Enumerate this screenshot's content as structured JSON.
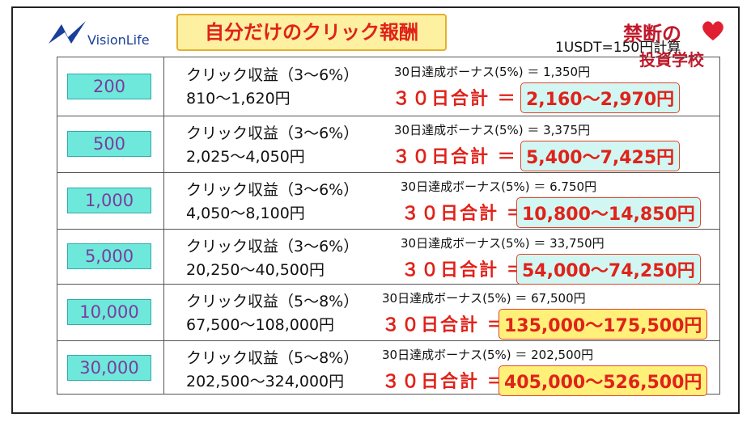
{
  "header": {
    "logo": "VisionLife",
    "title": "自分だけのクリック報酬",
    "rate": "1USDT=150円計算",
    "watermark_top": "禁断の",
    "watermark_bottom": "投資学校"
  },
  "table": {
    "rows": [
      {
        "amount": "200",
        "click": "クリック収益（3〜6%）",
        "range": "810〜1,620円",
        "bonus": "30日達成ボーナス(5%) ＝ 1,350円",
        "total_label": "３０日合計 ＝",
        "total": "2,160〜2,970円"
      },
      {
        "amount": "500",
        "click": "クリック収益（3〜6%）",
        "range": "2,025〜4,050円",
        "bonus": "30日達成ボーナス(5%) ＝ 3,375円",
        "total_label": "３０日合計 ＝",
        "total": "5,400〜7,425円"
      },
      {
        "amount": "1,000",
        "click": "クリック収益（3〜6%）",
        "range": "4,050〜8,100円",
        "bonus": "30日達成ボーナス(5%) ＝ 6.750円",
        "total_label": "３０日合計 ＝",
        "total": "10,800〜14,850円"
      },
      {
        "amount": "5,000",
        "click": "クリック収益（3〜6%）",
        "range": "20,250〜40,500円",
        "bonus": "30日達成ボーナス(5%) ＝ 33,750円",
        "total_label": "３０日合計 ＝",
        "total": "54,000〜74,250円"
      },
      {
        "amount": "10,000",
        "click": "クリック収益（5〜8%）",
        "range": "67,500〜108,000円",
        "bonus": "30日達成ボーナス(5%) ＝ 67,500円",
        "total_label": "３０日合計 ＝",
        "total": "135,000〜175,500円"
      },
      {
        "amount": "30,000",
        "click": "クリック収益（5〜8%）",
        "range": "202,500〜324,000円",
        "bonus": "30日達成ボーナス(5%) ＝ 202,500円",
        "total_label": "３０日合計 ＝",
        "total": "405,000〜526,500円"
      }
    ]
  }
}
